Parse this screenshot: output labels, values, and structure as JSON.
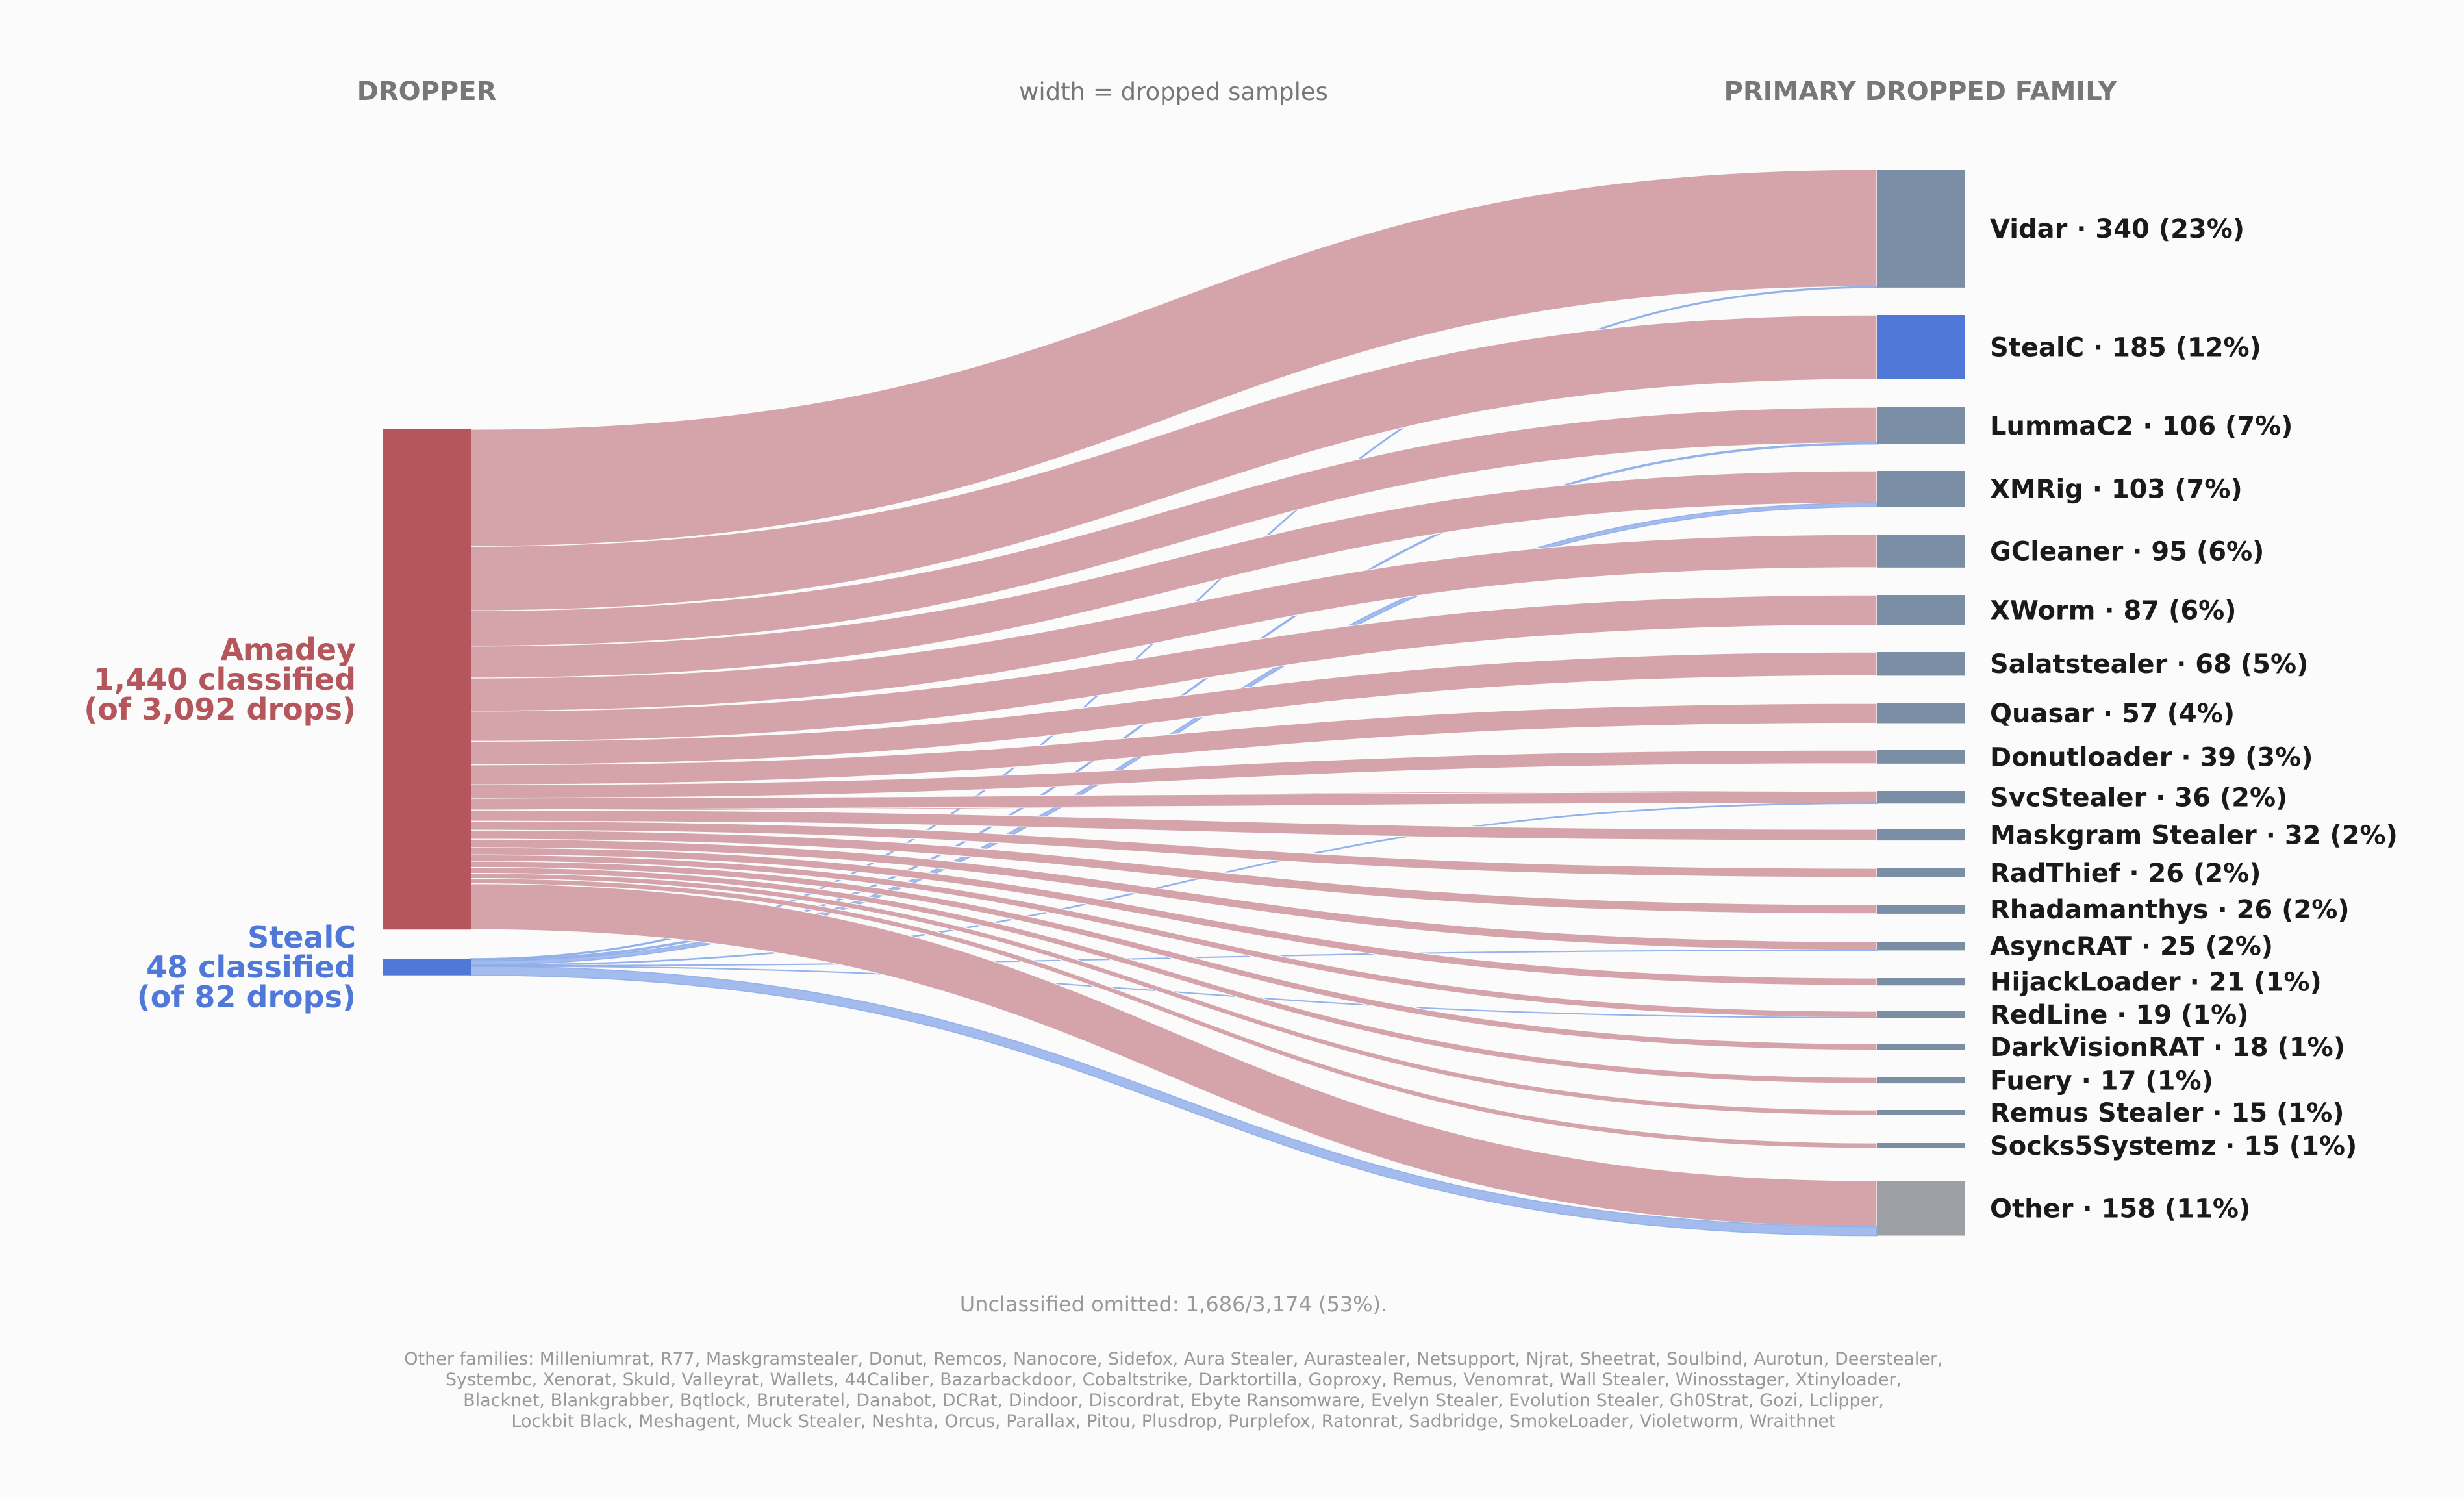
{
  "headers": {
    "left": "DROPPER",
    "middle": "width = dropped samples",
    "right": "PRIMARY DROPPED FAMILY"
  },
  "notes": {
    "unclassified": "Unclassified omitted: 1,686/3,174 (53%).",
    "other_families": [
      "Other families: Milleniumrat, R77, Maskgramstealer, Donut, Remcos, Nanocore, Sidefox, Aura Stealer, Aurastealer, Netsupport, Njrat, Sheetrat, Soulbind, Aurotun, Deerstealer,",
      "Systembc, Xenorat, Skuld, Valleyrat, Wallets, 44Caliber, Bazarbackdoor, Cobaltstrike, Darktortilla, Goproxy, Remus, Venomrat, Wall Stealer, Winosstager, Xtinyloader,",
      "Blacknet, Blankgrabber, Bqtlock, Bruteratel, Danabot, DCRat, Dindoor, Discordrat, Ebyte Ransomware, Evelyn Stealer, Evolution Stealer, Gh0Strat, Gozi, Lclipper,",
      "Lockbit Black, Meshagent, Muck Stealer, Neshta, Orcus, Parallax, Pitou, Plusdrop, Purplefox, Ratonrat, Sadbridge, SmokeLoader, Violetworm, Wraithnet"
    ]
  },
  "colors": {
    "amadey": "#b5555c",
    "amadey_flow": "#d4a1a8",
    "stealc_source": "#4f78d8",
    "stealc_flow": "#8fadea",
    "target_default": "#7a8ea6",
    "target_stealc": "#4f78d8",
    "target_other": "#9c9fa4"
  },
  "chart_data": {
    "type": "sankey",
    "sources": [
      {
        "id": "amadey",
        "lines": [
          "Amadey",
          "1,440 classified",
          "(of 3,092 drops)"
        ],
        "classified": 1440,
        "drops": 3092
      },
      {
        "id": "stealc",
        "lines": [
          "StealC",
          "48 classified",
          "(of 82 drops)"
        ],
        "classified": 48,
        "drops": 82
      }
    ],
    "targets": [
      {
        "name": "Vidar",
        "label": "Vidar · 340 (23%)",
        "value": 340
      },
      {
        "name": "StealC",
        "label": "StealC · 185 (12%)",
        "value": 185
      },
      {
        "name": "LummaC2",
        "label": "LummaC2 · 106 (7%)",
        "value": 106
      },
      {
        "name": "XMRig",
        "label": "XMRig · 103 (7%)",
        "value": 103
      },
      {
        "name": "GCleaner",
        "label": "GCleaner · 95 (6%)",
        "value": 95
      },
      {
        "name": "XWorm",
        "label": "XWorm · 87 (6%)",
        "value": 87
      },
      {
        "name": "Salatstealer",
        "label": "Salatstealer · 68 (5%)",
        "value": 68
      },
      {
        "name": "Quasar",
        "label": "Quasar · 57 (4%)",
        "value": 57
      },
      {
        "name": "Donutloader",
        "label": "Donutloader · 39 (3%)",
        "value": 39
      },
      {
        "name": "SvcStealer",
        "label": "SvcStealer · 36 (2%)",
        "value": 36
      },
      {
        "name": "Maskgram Stealer",
        "label": "Maskgram Stealer · 32 (2%)",
        "value": 32
      },
      {
        "name": "RadThief",
        "label": "RadThief · 26 (2%)",
        "value": 26
      },
      {
        "name": "Rhadamanthys",
        "label": "Rhadamanthys · 26 (2%)",
        "value": 26
      },
      {
        "name": "AsyncRAT",
        "label": "AsyncRAT · 25 (2%)",
        "value": 25
      },
      {
        "name": "HijackLoader",
        "label": "HijackLoader · 21 (1%)",
        "value": 21
      },
      {
        "name": "RedLine",
        "label": "RedLine · 19 (1%)",
        "value": 19
      },
      {
        "name": "DarkVisionRAT",
        "label": "DarkVisionRAT · 18 (1%)",
        "value": 18
      },
      {
        "name": "Fuery",
        "label": "Fuery · 17 (1%)",
        "value": 17
      },
      {
        "name": "Remus Stealer",
        "label": "Remus Stealer · 15 (1%)",
        "value": 15
      },
      {
        "name": "Socks5Systemz",
        "label": "Socks5Systemz · 15 (1%)",
        "value": 15
      },
      {
        "name": "Other",
        "label": "Other · 158 (11%)",
        "value": 158
      }
    ],
    "flows": [
      {
        "source": "amadey",
        "target": "Vidar",
        "value": 337
      },
      {
        "source": "stealc",
        "target": "Vidar",
        "value": 3
      },
      {
        "source": "amadey",
        "target": "StealC",
        "value": 185
      },
      {
        "source": "amadey",
        "target": "LummaC2",
        "value": 102
      },
      {
        "source": "stealc",
        "target": "LummaC2",
        "value": 4
      },
      {
        "source": "amadey",
        "target": "XMRig",
        "value": 92
      },
      {
        "source": "stealc",
        "target": "XMRig",
        "value": 11
      },
      {
        "source": "amadey",
        "target": "GCleaner",
        "value": 95
      },
      {
        "source": "amadey",
        "target": "XWorm",
        "value": 87
      },
      {
        "source": "amadey",
        "target": "Salatstealer",
        "value": 68
      },
      {
        "source": "amadey",
        "target": "Quasar",
        "value": 57
      },
      {
        "source": "amadey",
        "target": "Donutloader",
        "value": 39
      },
      {
        "source": "amadey",
        "target": "SvcStealer",
        "value": 34
      },
      {
        "source": "stealc",
        "target": "SvcStealer",
        "value": 2
      },
      {
        "source": "amadey",
        "target": "Maskgram Stealer",
        "value": 32
      },
      {
        "source": "amadey",
        "target": "RadThief",
        "value": 26
      },
      {
        "source": "amadey",
        "target": "Rhadamanthys",
        "value": 26
      },
      {
        "source": "amadey",
        "target": "AsyncRAT",
        "value": 24
      },
      {
        "source": "stealc",
        "target": "AsyncRAT",
        "value": 1
      },
      {
        "source": "amadey",
        "target": "HijackLoader",
        "value": 21
      },
      {
        "source": "amadey",
        "target": "RedLine",
        "value": 18
      },
      {
        "source": "stealc",
        "target": "RedLine",
        "value": 1
      },
      {
        "source": "amadey",
        "target": "DarkVisionRAT",
        "value": 18
      },
      {
        "source": "amadey",
        "target": "Fuery",
        "value": 17
      },
      {
        "source": "amadey",
        "target": "Remus Stealer",
        "value": 15
      },
      {
        "source": "amadey",
        "target": "Socks5Systemz",
        "value": 15
      },
      {
        "source": "amadey",
        "target": "Other",
        "value": 132
      },
      {
        "source": "stealc",
        "target": "Other",
        "value": 26
      }
    ]
  }
}
